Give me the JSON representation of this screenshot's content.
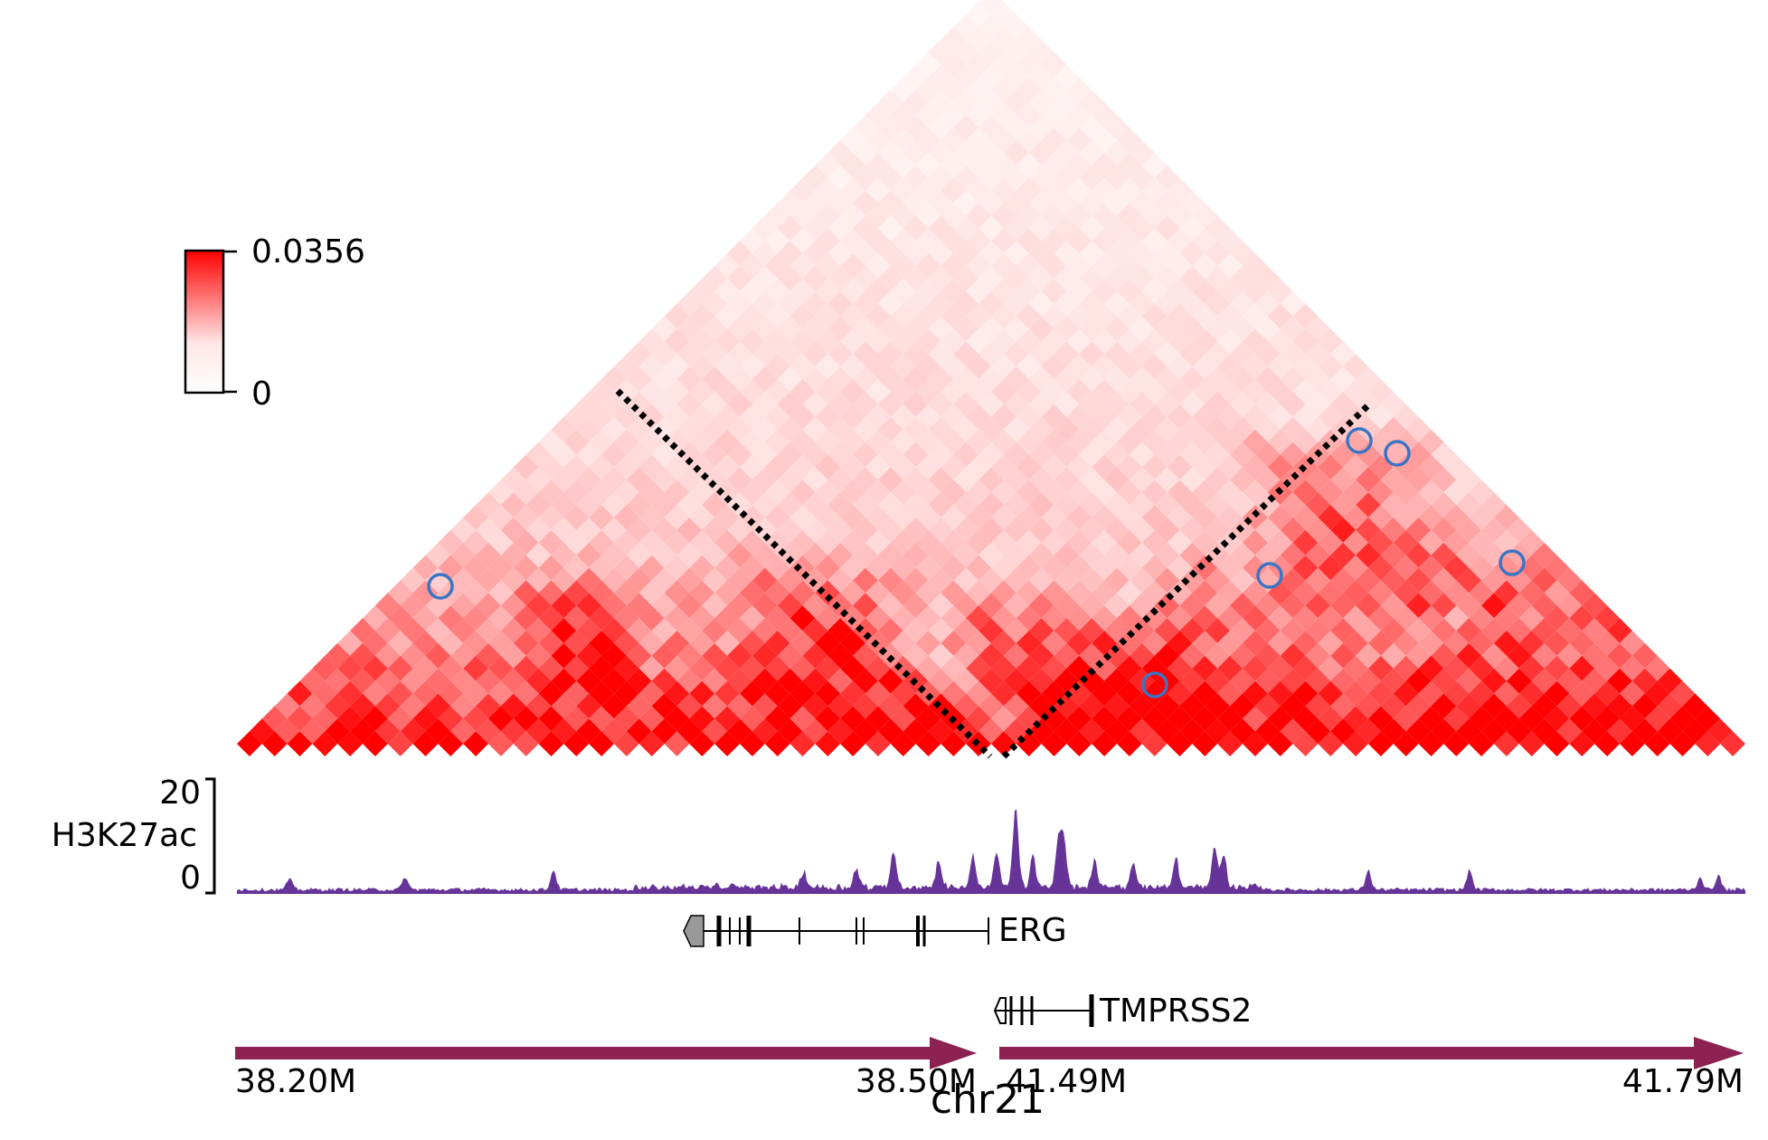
{
  "chrom_label": "chr21",
  "colorbar": {
    "max_label": "0.0356",
    "min_label": "0",
    "min_color": "#ffffff",
    "max_color": "#ff0000"
  },
  "segments": [
    {
      "start_label": "38.20M",
      "end_label": "38.50M",
      "arrow_color": "#8b2252"
    },
    {
      "start_label": "41.49M",
      "end_label": "41.79M",
      "arrow_color": "#8b2252"
    }
  ],
  "track": {
    "name": "H3K27ac",
    "max_label": "20",
    "min_label": "0",
    "color": "#663399"
  },
  "genes": [
    {
      "name": "ERG",
      "strand": "-"
    },
    {
      "name": "TMPRSS2",
      "strand": "-"
    }
  ],
  "loop_marker_color": "#3a75c4",
  "boundary_line": "dotted"
}
